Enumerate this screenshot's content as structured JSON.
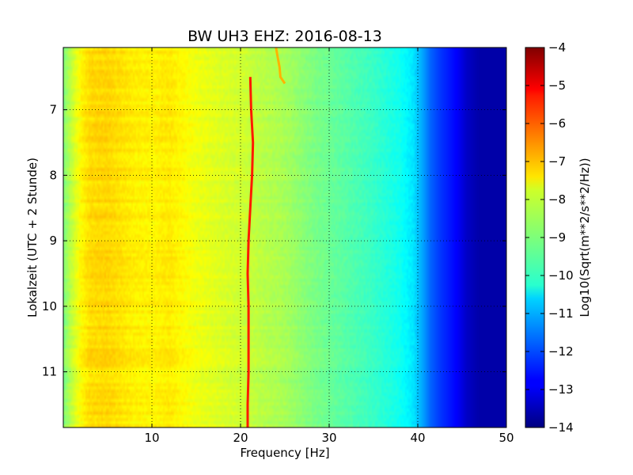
{
  "chart_data": {
    "type": "heatmap",
    "title": "BW UH3 EHZ: 2016-08-13",
    "xlabel": "Frequency [Hz]",
    "ylabel": "Lokalzeit (UTC + 2 Stunde)",
    "xlim": [
      0,
      50
    ],
    "ylim": [
      11.85,
      6.05
    ],
    "y_inverted": true,
    "x_ticks": [
      10,
      20,
      30,
      40,
      50
    ],
    "y_ticks": [
      7,
      8,
      9,
      10,
      11
    ],
    "grid": true,
    "grid_style": "dotted",
    "colormap": "jet",
    "colorbar": {
      "label": "Log10(Sqrt(m**2/s**2/Hz))",
      "min": -14,
      "max": -4,
      "ticks": [
        -4,
        -5,
        -6,
        -7,
        -8,
        -9,
        -10,
        -11,
        -12,
        -13,
        -14
      ]
    },
    "spectral_profile": {
      "frequency_hz": [
        0,
        1,
        2,
        3,
        5,
        8,
        10,
        12,
        15,
        18,
        20,
        22,
        25,
        28,
        30,
        33,
        35,
        38,
        39.5,
        40.5,
        41.5,
        42.5,
        43.5,
        44.5,
        45.5,
        47,
        50
      ],
      "level": [
        -9.0,
        -8.3,
        -7.7,
        -7.4,
        -7.35,
        -7.6,
        -7.65,
        -7.55,
        -7.9,
        -8.1,
        -8.2,
        -8.4,
        -8.6,
        -9.0,
        -9.2,
        -9.5,
        -9.7,
        -10.1,
        -10.5,
        -11.1,
        -11.8,
        -12.2,
        -12.5,
        -12.8,
        -13.3,
        -13.6,
        -13.6
      ]
    },
    "narrowband_line": {
      "time_h": [
        6.5,
        7.0,
        7.5,
        8.0,
        8.5,
        9.0,
        9.5,
        10.0,
        10.5,
        11.0,
        11.5,
        11.85
      ],
      "frequency_hz": [
        21.1,
        21.2,
        21.4,
        21.3,
        21.1,
        20.9,
        20.8,
        20.9,
        20.9,
        20.9,
        20.8,
        20.8
      ],
      "level": -5.5
    },
    "transient_line": {
      "time_h": [
        6.05,
        6.2,
        6.35,
        6.5,
        6.6
      ],
      "frequency_hz": [
        24.0,
        24.2,
        24.4,
        24.5,
        25.0
      ],
      "level": -7.0
    }
  }
}
